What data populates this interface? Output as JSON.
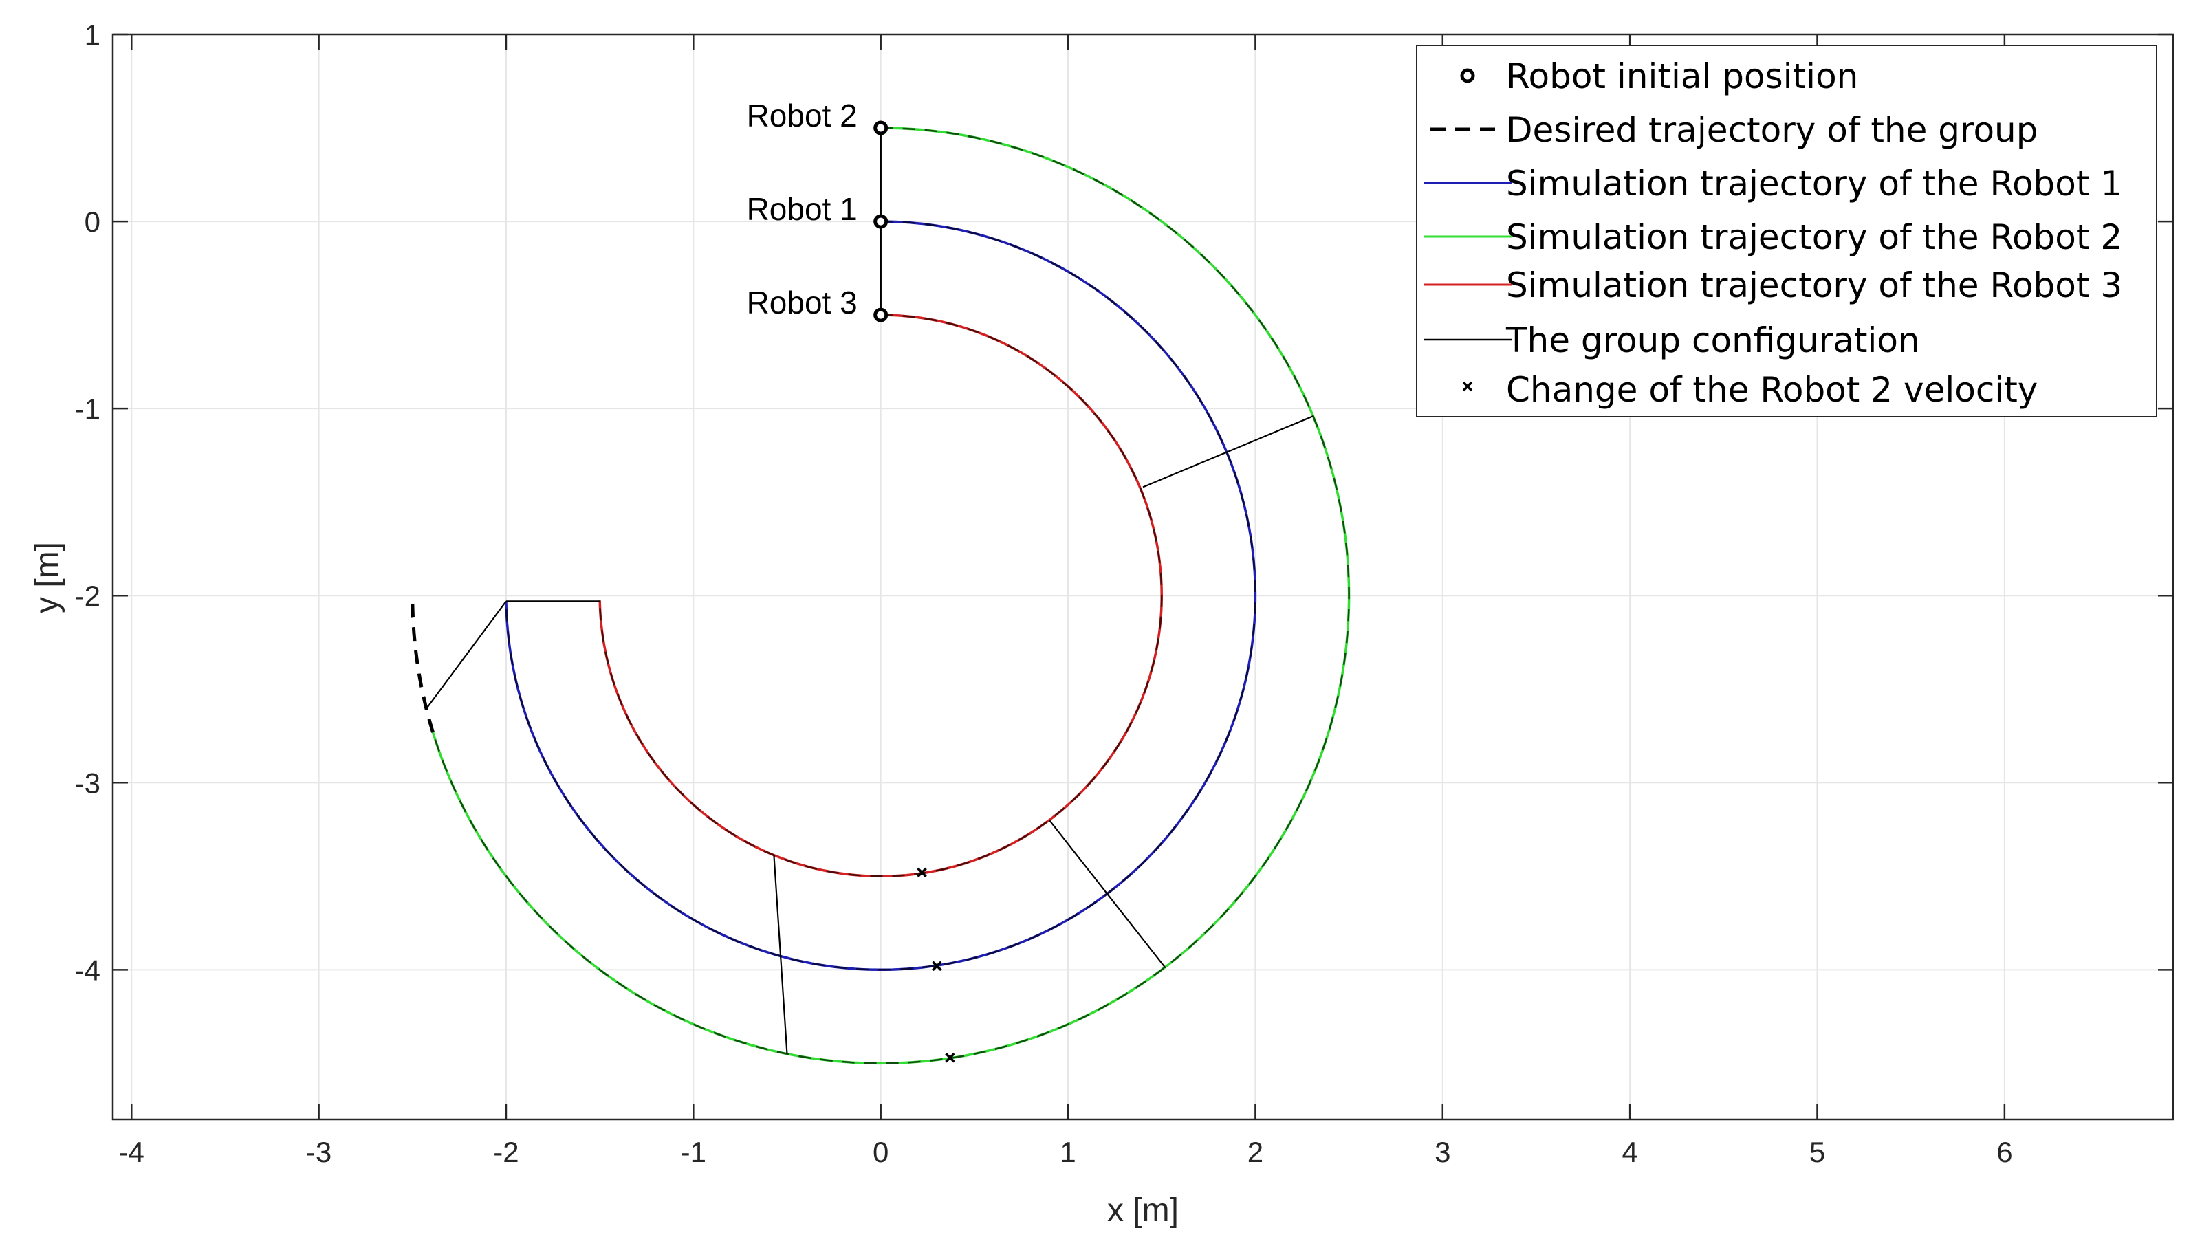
{
  "chart_data": {
    "type": "line",
    "xlabel": "x [m]",
    "ylabel": "y [m]",
    "xlim": [
      -4.1,
      6.9
    ],
    "ylim": [
      -4.8,
      1.0
    ],
    "xticks": [
      -4,
      -3,
      -2,
      -1,
      0,
      1,
      2,
      3,
      4,
      5,
      6
    ],
    "yticks": [
      -4,
      -3,
      -2,
      -1,
      0,
      1
    ],
    "xtick_labels": [
      "-4",
      "-3",
      "-2",
      "-1",
      "0",
      "1",
      "2",
      "3",
      "4",
      "5",
      "6"
    ],
    "ytick_labels": [
      "-4",
      "-3",
      "-2",
      "-1",
      "0",
      "1"
    ],
    "grid": true,
    "legend_position": "top-right",
    "legend": [
      {
        "label": "Robot initial position",
        "style": "circle-marker"
      },
      {
        "label": "Desired trajectory of the group",
        "style": "dashed"
      },
      {
        "label": "Simulation trajectory of the Robot 1",
        "style": "line",
        "color": "#1f1fb4"
      },
      {
        "label": "Simulation trajectory of the Robot 2",
        "style": "line",
        "color": "#33dd33"
      },
      {
        "label": "Simulation trajectory of the Robot 3",
        "style": "line",
        "color": "#d42222"
      },
      {
        "label": "The group configuration",
        "style": "thin-line"
      },
      {
        "label": "Change of the Robot 2 velocity",
        "style": "x-marker"
      }
    ],
    "center": [
      0,
      -2
    ],
    "robots": [
      {
        "label": "Robot 1",
        "start": [
          0,
          0
        ],
        "radius": 2.0,
        "color": "#1f1fb4",
        "end_angle_deg": 269.0
      },
      {
        "label": "Robot 2",
        "start": [
          0,
          0.5
        ],
        "radius": 2.5,
        "color": "#33dd33",
        "end_angle_deg": 253.0
      },
      {
        "label": "Robot 3",
        "start": [
          0,
          -0.5
        ],
        "radius": 1.5,
        "color": "#d42222",
        "end_angle_deg": 269.0
      }
    ],
    "desired_extension": {
      "radius": 2.5,
      "from_angle_deg": 253.0,
      "to_angle_deg": 269.0
    },
    "velocity_change_points": [
      [
        0.22,
        -3.48
      ],
      [
        0.3,
        -3.98
      ],
      [
        0.37,
        -4.47
      ]
    ],
    "configurations": [
      [
        [
          1.4,
          -1.42
        ],
        [
          2.31,
          -1.04
        ]
      ],
      [
        [
          0.9,
          -3.2
        ],
        [
          1.52,
          -3.99
        ]
      ],
      [
        [
          -0.57,
          -3.39
        ],
        [
          -0.5,
          -4.45
        ]
      ],
      [
        [
          -1.5,
          -2.03
        ],
        [
          -2.0,
          -2.03
        ]
      ],
      [
        [
          -2.0,
          -2.03
        ],
        [
          -2.43,
          -2.61
        ]
      ]
    ]
  }
}
